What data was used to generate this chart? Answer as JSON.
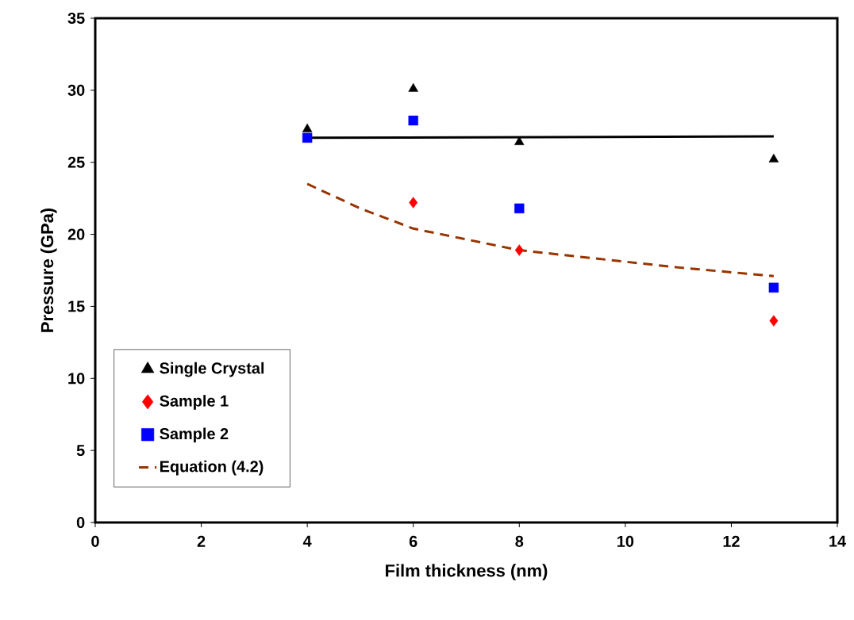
{
  "chart_data": {
    "type": "scatter",
    "xlabel": "Film thickness (nm)",
    "ylabel": "Pressure (GPa)",
    "xlim": [
      0,
      14
    ],
    "ylim": [
      0,
      35
    ],
    "xticks": [
      0,
      2,
      4,
      6,
      8,
      10,
      12,
      14
    ],
    "yticks": [
      0,
      5,
      10,
      15,
      20,
      25,
      30,
      35
    ],
    "legend": "bottom left",
    "series": [
      {
        "name": "Single Crystal",
        "color": "#000000",
        "marker": "triangle",
        "x": [
          4,
          6,
          8,
          12.8
        ],
        "values": [
          27.3,
          30.1,
          26.4,
          25.2
        ]
      },
      {
        "name": "Sample 1",
        "color": "#ff0000",
        "marker": "diamond",
        "x": [
          6,
          8,
          12.8
        ],
        "values": [
          22.2,
          18.9,
          14.0
        ]
      },
      {
        "name": "Sample 2",
        "color": "#0000ff",
        "marker": "square",
        "x": [
          4,
          6,
          8,
          12.8
        ],
        "values": [
          26.7,
          27.9,
          21.8,
          16.3
        ]
      },
      {
        "type": "line",
        "color": "#000000",
        "line_style": "solid",
        "x": [
          4,
          12.8
        ],
        "values": [
          26.7,
          26.8
        ]
      },
      {
        "name": "Equation (4.2)",
        "type": "line",
        "color": "#993300",
        "line_style": "dashed",
        "x": [
          4,
          5,
          6,
          8,
          10,
          11,
          12.8
        ],
        "values": [
          23.5,
          21.8,
          20.4,
          18.9,
          18.1,
          17.7,
          17.1
        ]
      }
    ]
  }
}
